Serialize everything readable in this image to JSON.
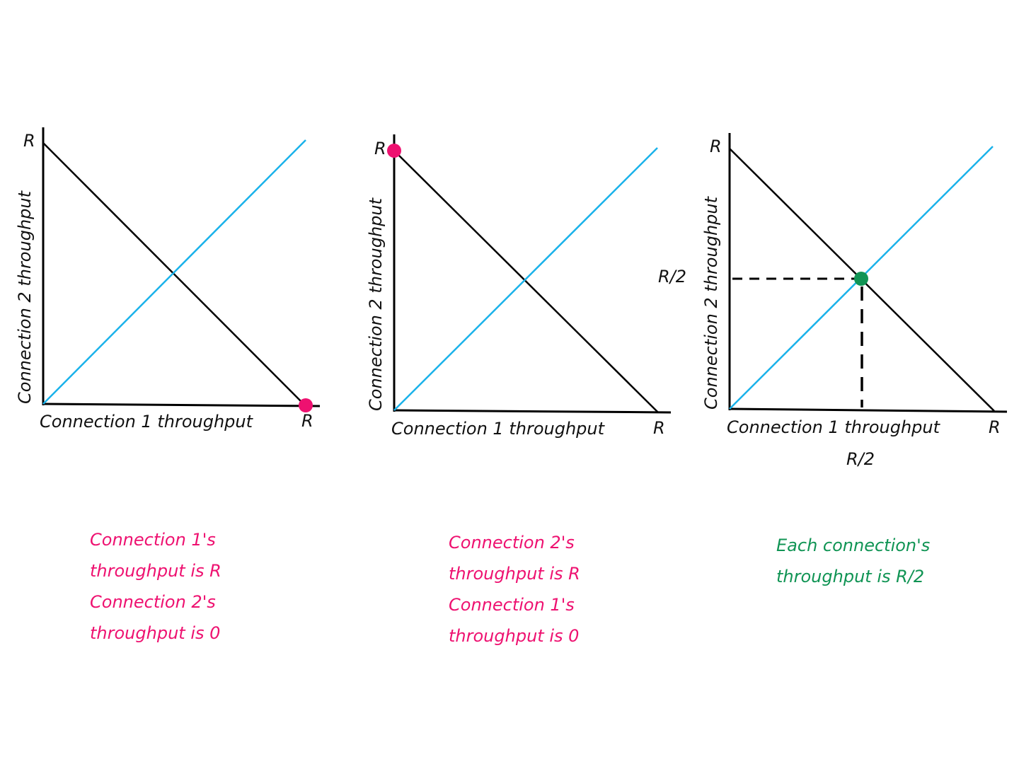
{
  "colors": {
    "axis": "#000000",
    "black_line": "#000000",
    "blue_line": "#1ab2ea",
    "pink": "#ee1170",
    "green": "#109454"
  },
  "panels": [
    {
      "x_axis_label": "Connection 1 throughput",
      "y_axis_label": "Connection 2 throughput",
      "x_max_label": "R",
      "y_max_label": "R",
      "highlight_point": "connection-1-at-R",
      "highlight_color": "#ee1170",
      "caption": [
        "Connection 1's",
        "throughput is R",
        "Connection 2's",
        "throughput is 0"
      ],
      "caption_color": "#ee1170"
    },
    {
      "x_axis_label": "Connection 1 throughput",
      "y_axis_label": "Connection 2 throughput",
      "x_max_label": "R",
      "y_max_label": "R",
      "highlight_point": "connection-2-at-R",
      "highlight_color": "#ee1170",
      "caption": [
        "Connection 2's",
        "throughput is R",
        "Connection 1's",
        "throughput is 0"
      ],
      "caption_color": "#ee1170"
    },
    {
      "x_axis_label": "Connection 1 throughput",
      "y_axis_label": "Connection 2 throughput",
      "x_max_label": "R",
      "y_max_label": "R",
      "x_mid_label": "R/2",
      "y_mid_label": "R/2",
      "highlight_point": "equal-share",
      "highlight_color": "#109454",
      "caption": [
        "Each connection's",
        "throughput is R/2"
      ],
      "caption_color": "#109454"
    }
  ]
}
